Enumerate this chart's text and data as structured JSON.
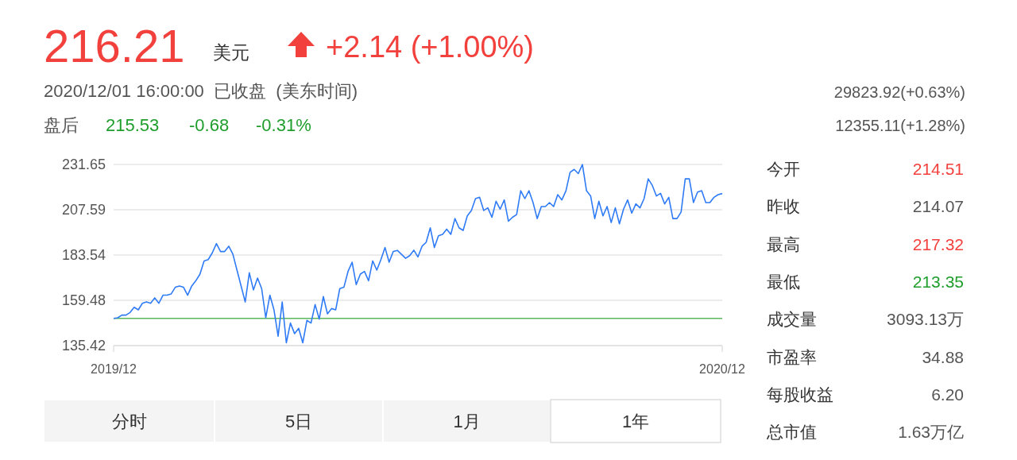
{
  "chart_data": {
    "type": "line",
    "title": "216.21",
    "annotations": [
      "美元",
      "+2.14 (+1.00%)",
      "2020/12/01 16:00:00  已收盘  (美东时间)",
      "盘后",
      "215.53",
      "-0.68",
      "-0.31%",
      "29823.92(+0.63%)",
      "12355.11(+1.28%)",
      "今开",
      "214.51",
      "昨收",
      "214.07",
      "最高",
      "217.32",
      "最低",
      "213.35",
      "成交量",
      "3093.13万",
      "市盈率",
      "34.88",
      "每股收益",
      "6.20",
      "总市值",
      "1.63万亿",
      "分时",
      "5日",
      "1月",
      "1年"
    ],
    "categories": [
      "2019/12",
      null,
      null,
      null,
      null,
      null,
      null,
      null,
      null,
      null,
      null,
      null,
      null,
      null,
      null,
      null,
      null,
      null,
      null,
      null,
      null,
      null,
      null,
      null,
      null,
      null,
      null,
      null,
      null,
      null,
      null,
      null,
      null,
      null,
      null,
      null,
      null,
      null,
      null,
      null,
      null,
      null,
      null,
      null,
      null,
      null,
      null,
      null,
      null,
      null,
      null,
      null,
      null,
      null,
      null,
      null,
      null,
      null,
      null,
      null,
      null,
      null,
      null,
      null,
      null,
      null,
      null,
      null,
      null,
      null,
      null,
      null,
      null,
      null,
      null,
      null,
      null,
      null,
      null,
      null,
      null,
      null,
      null,
      null,
      null,
      null,
      null,
      null,
      null,
      null,
      null,
      null,
      null,
      null,
      null,
      null,
      null,
      null,
      null,
      null,
      null,
      null,
      null,
      null,
      null,
      null,
      null,
      null,
      null,
      null,
      null,
      null,
      null,
      null,
      null,
      null,
      null,
      null,
      null,
      null,
      null,
      null,
      null,
      null,
      null,
      null,
      null,
      null,
      null,
      null,
      null,
      null,
      null,
      null,
      null,
      null,
      null,
      null,
      null,
      null,
      null,
      null,
      null,
      null,
      null,
      null,
      null,
      null,
      "2020/12"
    ],
    "ylim": [
      135.42,
      231.65
    ],
    "yticks": [
      135.42,
      159.48,
      183.54,
      207.59,
      231.65
    ],
    "grid": "y",
    "ref_lines": [
      {
        "axis": "y",
        "value": 149.9,
        "color": "#5cb85c"
      }
    ],
    "series": [
      {
        "color": "#2f7bf5",
        "values": [
          149.9,
          150.2,
          151.6,
          151.6,
          153,
          155.8,
          154.4,
          157.9,
          158.6,
          157.9,
          160.8,
          157.9,
          162.2,
          162.2,
          162.9,
          166.4,
          167.1,
          166.4,
          162.2,
          167.1,
          169.9,
          173.4,
          180.4,
          181.1,
          184.7,
          189.6,
          185.4,
          185.4,
          188.2,
          184,
          175.5,
          167.1,
          158.6,
          174.1,
          165,
          171.3,
          165.7,
          150.2,
          162.2,
          154.4,
          140.4,
          158.6,
          136.9,
          147.4,
          141.8,
          144.6,
          136.9,
          148.8,
          147.4,
          157.2,
          149.5,
          161.5,
          152.3,
          155.1,
          154.4,
          165.7,
          166.4,
          174.8,
          179.7,
          167.8,
          173.4,
          174.8,
          169.9,
          180.4,
          175.5,
          181.1,
          187.5,
          179.7,
          185.4,
          186,
          183.9,
          181.8,
          183.2,
          186.1,
          182.5,
          188.2,
          190.3,
          198,
          187.5,
          193.8,
          194.5,
          197.3,
          194.5,
          202.9,
          198,
          196.6,
          204.3,
          207.2,
          213.5,
          214.2,
          207.2,
          208.6,
          203.6,
          212.1,
          207.9,
          212.8,
          201.5,
          203.6,
          205,
          217.7,
          213.5,
          217.7,
          211.4,
          202.9,
          209.3,
          209.3,
          211.4,
          209.3,
          215.6,
          212.8,
          217.7,
          227.5,
          229,
          226.8,
          231.6,
          217.7,
          214.9,
          202.9,
          212.1,
          204.3,
          209.3,
          200.8,
          208.6,
          200.1,
          207.9,
          212.8,
          205.8,
          210.7,
          208.6,
          213.5,
          224,
          220.5,
          214.9,
          216.3,
          210.7,
          214.2,
          202.9,
          202.9,
          206.4,
          224,
          224,
          211.4,
          217,
          217.7,
          211.4,
          211.4,
          214.2,
          215.6,
          216.2
        ]
      }
    ]
  }
}
